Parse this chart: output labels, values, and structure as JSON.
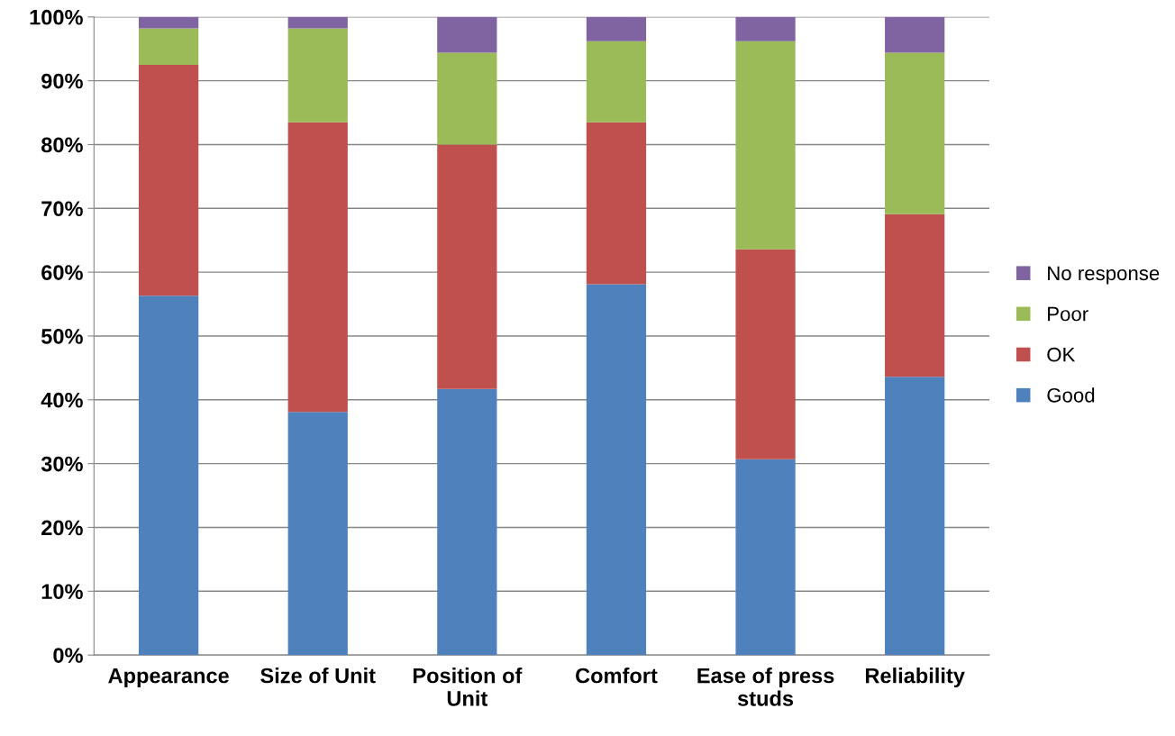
{
  "chart_data": {
    "type": "bar",
    "stacked": true,
    "categories": [
      "Appearance",
      "Size of Unit",
      "Position of\nUnit",
      "Comfort",
      "Ease of press\nstuds",
      "Reliability"
    ],
    "series": [
      {
        "name": "Good",
        "color": "#4f81bd",
        "values": [
          56.3,
          38.1,
          41.7,
          58.1,
          30.7,
          43.6
        ]
      },
      {
        "name": "OK",
        "color": "#c0504d",
        "values": [
          36.2,
          45.4,
          38.3,
          25.4,
          32.9,
          25.5
        ]
      },
      {
        "name": "Poor",
        "color": "#9bbb59",
        "values": [
          5.7,
          14.7,
          14.4,
          12.7,
          32.6,
          25.3
        ]
      },
      {
        "name": "No response",
        "color": "#8064a2",
        "values": [
          1.8,
          1.8,
          5.6,
          3.8,
          3.8,
          5.6
        ]
      }
    ],
    "ylim": [
      0,
      100
    ],
    "yticks": [
      {
        "value": 0,
        "label": "0%"
      },
      {
        "value": 10,
        "label": "10%"
      },
      {
        "value": 20,
        "label": "20%"
      },
      {
        "value": 30,
        "label": "30%"
      },
      {
        "value": 40,
        "label": "40%"
      },
      {
        "value": 50,
        "label": "50%"
      },
      {
        "value": 60,
        "label": "60%"
      },
      {
        "value": 70,
        "label": "70%"
      },
      {
        "value": 80,
        "label": "80%"
      },
      {
        "value": 90,
        "label": "90%"
      },
      {
        "value": 100,
        "label": "100%"
      }
    ],
    "grid": "y",
    "legend": "right"
  }
}
